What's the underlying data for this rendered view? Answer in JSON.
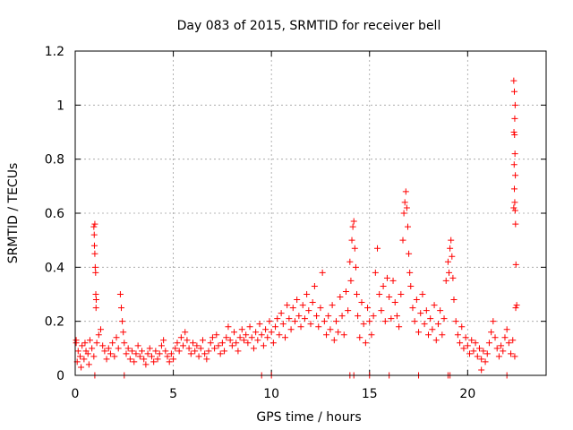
{
  "chart_data": {
    "type": "scatter",
    "title": "Day 083 of 2015, SRMTID for receiver bell",
    "xlabel": "GPS time / hours",
    "ylabel": "SRMTID / TECUs",
    "xlim": [
      0,
      24
    ],
    "ylim": [
      0,
      1.2
    ],
    "x_ticks": [
      0,
      5,
      10,
      15,
      20
    ],
    "x_tick_labels": [
      "0",
      "5",
      "10",
      "15",
      "20"
    ],
    "y_ticks": [
      0,
      0.2,
      0.4,
      0.6,
      0.8,
      1.0,
      1.2
    ],
    "y_tick_labels": [
      "0",
      "0.2",
      "0.4",
      "0.6",
      "0.8",
      "1",
      "1.2"
    ],
    "grid": true,
    "marker": "+",
    "series": [
      {
        "name": "SRMTID",
        "color": "#ff0000",
        "points": [
          [
            0.05,
            0.12
          ],
          [
            0.15,
            0.09
          ],
          [
            0.25,
            0.07
          ],
          [
            0.35,
            0.11
          ],
          [
            0.45,
            0.06
          ],
          [
            0.55,
            0.09
          ],
          [
            0.65,
            0.08
          ],
          [
            0.75,
            0.13
          ],
          [
            0.85,
            0.1
          ],
          [
            0.95,
            0.07
          ],
          [
            0.05,
            0.13
          ],
          [
            0.1,
            0.05
          ],
          [
            0.3,
            0.03
          ],
          [
            0.5,
            0.12
          ],
          [
            0.7,
            0.04
          ],
          [
            0.95,
            0.55
          ],
          [
            0.97,
            0.52
          ],
          [
            1.0,
            0.45
          ],
          [
            1.02,
            0.4
          ],
          [
            1.04,
            0.38
          ],
          [
            1.05,
            0.3
          ],
          [
            1.07,
            0.28
          ],
          [
            1.0,
            0.56
          ],
          [
            0.98,
            0.48
          ],
          [
            1.06,
            0.25
          ],
          [
            1.1,
            0.12
          ],
          [
            1.2,
            0.15
          ],
          [
            1.3,
            0.17
          ],
          [
            1.4,
            0.11
          ],
          [
            1.5,
            0.09
          ],
          [
            1.6,
            0.06
          ],
          [
            1.7,
            0.1
          ],
          [
            1.8,
            0.08
          ],
          [
            1.9,
            0.12
          ],
          [
            2.0,
            0.07
          ],
          [
            2.1,
            0.14
          ],
          [
            2.2,
            0.1
          ],
          [
            2.3,
            0.3
          ],
          [
            2.35,
            0.25
          ],
          [
            2.4,
            0.2
          ],
          [
            2.45,
            0.16
          ],
          [
            2.5,
            0.12
          ],
          [
            2.6,
            0.08
          ],
          [
            2.7,
            0.1
          ],
          [
            2.8,
            0.06
          ],
          [
            2.9,
            0.09
          ],
          [
            3.0,
            0.05
          ],
          [
            3.1,
            0.08
          ],
          [
            3.2,
            0.11
          ],
          [
            3.3,
            0.07
          ],
          [
            3.4,
            0.09
          ],
          [
            3.5,
            0.06
          ],
          [
            3.6,
            0.04
          ],
          [
            3.7,
            0.08
          ],
          [
            3.8,
            0.1
          ],
          [
            3.9,
            0.07
          ],
          [
            4.0,
            0.05
          ],
          [
            4.1,
            0.09
          ],
          [
            4.2,
            0.06
          ],
          [
            4.3,
            0.08
          ],
          [
            4.4,
            0.11
          ],
          [
            4.5,
            0.13
          ],
          [
            4.6,
            0.09
          ],
          [
            4.7,
            0.07
          ],
          [
            4.8,
            0.05
          ],
          [
            4.9,
            0.08
          ],
          [
            5.0,
            0.06
          ],
          [
            5.1,
            0.1
          ],
          [
            5.2,
            0.12
          ],
          [
            5.3,
            0.09
          ],
          [
            5.4,
            0.14
          ],
          [
            5.5,
            0.11
          ],
          [
            5.6,
            0.16
          ],
          [
            5.7,
            0.13
          ],
          [
            5.8,
            0.1
          ],
          [
            5.9,
            0.08
          ],
          [
            6.0,
            0.12
          ],
          [
            6.1,
            0.09
          ],
          [
            6.2,
            0.11
          ],
          [
            6.3,
            0.07
          ],
          [
            6.4,
            0.1
          ],
          [
            6.5,
            0.13
          ],
          [
            6.6,
            0.08
          ],
          [
            6.7,
            0.06
          ],
          [
            6.8,
            0.09
          ],
          [
            6.9,
            0.12
          ],
          [
            7.0,
            0.14
          ],
          [
            7.1,
            0.1
          ],
          [
            7.2,
            0.15
          ],
          [
            7.3,
            0.11
          ],
          [
            7.4,
            0.08
          ],
          [
            7.5,
            0.12
          ],
          [
            7.6,
            0.09
          ],
          [
            7.7,
            0.14
          ],
          [
            7.8,
            0.18
          ],
          [
            7.9,
            0.13
          ],
          [
            8.0,
            0.11
          ],
          [
            8.1,
            0.16
          ],
          [
            8.2,
            0.12
          ],
          [
            8.3,
            0.09
          ],
          [
            8.4,
            0.14
          ],
          [
            8.5,
            0.17
          ],
          [
            8.6,
            0.13
          ],
          [
            8.7,
            0.15
          ],
          [
            8.8,
            0.12
          ],
          [
            8.9,
            0.18
          ],
          [
            9.0,
            0.14
          ],
          [
            9.1,
            0.1
          ],
          [
            9.2,
            0.16
          ],
          [
            9.3,
            0.13
          ],
          [
            9.4,
            0.19
          ],
          [
            9.5,
            0.15
          ],
          [
            9.6,
            0.11
          ],
          [
            9.7,
            0.17
          ],
          [
            9.8,
            0.14
          ],
          [
            9.9,
            0.2
          ],
          [
            10.0,
            0.16
          ],
          [
            10.1,
            0.12
          ],
          [
            10.2,
            0.18
          ],
          [
            10.3,
            0.21
          ],
          [
            10.4,
            0.15
          ],
          [
            10.5,
            0.23
          ],
          [
            10.6,
            0.19
          ],
          [
            10.7,
            0.14
          ],
          [
            10.8,
            0.26
          ],
          [
            10.9,
            0.21
          ],
          [
            11.0,
            0.17
          ],
          [
            11.1,
            0.25
          ],
          [
            11.2,
            0.2
          ],
          [
            11.3,
            0.28
          ],
          [
            11.4,
            0.22
          ],
          [
            11.5,
            0.18
          ],
          [
            11.6,
            0.26
          ],
          [
            11.7,
            0.21
          ],
          [
            11.8,
            0.3
          ],
          [
            11.9,
            0.24
          ],
          [
            12.0,
            0.19
          ],
          [
            12.1,
            0.27
          ],
          [
            12.2,
            0.33
          ],
          [
            12.3,
            0.22
          ],
          [
            12.4,
            0.18
          ],
          [
            12.5,
            0.25
          ],
          [
            12.6,
            0.38
          ],
          [
            12.7,
            0.2
          ],
          [
            12.8,
            0.15
          ],
          [
            12.9,
            0.22
          ],
          [
            13.0,
            0.17
          ],
          [
            13.1,
            0.26
          ],
          [
            13.2,
            0.13
          ],
          [
            13.3,
            0.2
          ],
          [
            13.4,
            0.16
          ],
          [
            13.5,
            0.29
          ],
          [
            13.6,
            0.22
          ],
          [
            13.7,
            0.15
          ],
          [
            13.8,
            0.31
          ],
          [
            13.9,
            0.24
          ],
          [
            14.0,
            0.42
          ],
          [
            14.05,
            0.35
          ],
          [
            14.1,
            0.5
          ],
          [
            14.15,
            0.55
          ],
          [
            14.2,
            0.57
          ],
          [
            14.25,
            0.47
          ],
          [
            14.3,
            0.4
          ],
          [
            14.35,
            0.3
          ],
          [
            14.4,
            0.22
          ],
          [
            14.5,
            0.14
          ],
          [
            14.6,
            0.27
          ],
          [
            14.7,
            0.19
          ],
          [
            14.8,
            0.12
          ],
          [
            14.9,
            0.25
          ],
          [
            15.0,
            0.2
          ],
          [
            15.1,
            0.15
          ],
          [
            15.2,
            0.22
          ],
          [
            15.3,
            0.38
          ],
          [
            15.4,
            0.47
          ],
          [
            15.5,
            0.3
          ],
          [
            15.6,
            0.24
          ],
          [
            15.7,
            0.33
          ],
          [
            15.8,
            0.2
          ],
          [
            15.9,
            0.36
          ],
          [
            16.0,
            0.29
          ],
          [
            16.1,
            0.21
          ],
          [
            16.2,
            0.35
          ],
          [
            16.3,
            0.27
          ],
          [
            16.4,
            0.22
          ],
          [
            16.5,
            0.18
          ],
          [
            16.6,
            0.3
          ],
          [
            16.7,
            0.5
          ],
          [
            16.75,
            0.6
          ],
          [
            16.8,
            0.64
          ],
          [
            16.85,
            0.68
          ],
          [
            16.9,
            0.62
          ],
          [
            16.95,
            0.55
          ],
          [
            17.0,
            0.45
          ],
          [
            17.05,
            0.38
          ],
          [
            17.1,
            0.33
          ],
          [
            17.2,
            0.25
          ],
          [
            17.3,
            0.2
          ],
          [
            17.4,
            0.28
          ],
          [
            17.5,
            0.16
          ],
          [
            17.6,
            0.23
          ],
          [
            17.7,
            0.3
          ],
          [
            17.8,
            0.19
          ],
          [
            17.9,
            0.24
          ],
          [
            18.0,
            0.15
          ],
          [
            18.1,
            0.21
          ],
          [
            18.2,
            0.17
          ],
          [
            18.3,
            0.26
          ],
          [
            18.4,
            0.13
          ],
          [
            18.5,
            0.19
          ],
          [
            18.6,
            0.24
          ],
          [
            18.7,
            0.15
          ],
          [
            18.8,
            0.21
          ],
          [
            18.9,
            0.35
          ],
          [
            19.0,
            0.42
          ],
          [
            19.05,
            0.38
          ],
          [
            19.1,
            0.47
          ],
          [
            19.15,
            0.5
          ],
          [
            19.2,
            0.44
          ],
          [
            19.25,
            0.36
          ],
          [
            19.3,
            0.28
          ],
          [
            19.4,
            0.2
          ],
          [
            19.5,
            0.15
          ],
          [
            19.6,
            0.12
          ],
          [
            19.7,
            0.18
          ],
          [
            19.8,
            0.1
          ],
          [
            19.9,
            0.14
          ],
          [
            20.0,
            0.11
          ],
          [
            20.1,
            0.08
          ],
          [
            20.2,
            0.13
          ],
          [
            20.3,
            0.09
          ],
          [
            20.4,
            0.12
          ],
          [
            20.5,
            0.07
          ],
          [
            20.6,
            0.1
          ],
          [
            20.7,
            0.06
          ],
          [
            20.8,
            0.09
          ],
          [
            20.9,
            0.05
          ],
          [
            21.0,
            0.08
          ],
          [
            21.1,
            0.12
          ],
          [
            21.2,
            0.16
          ],
          [
            21.3,
            0.2
          ],
          [
            21.4,
            0.14
          ],
          [
            21.5,
            0.1
          ],
          [
            21.6,
            0.07
          ],
          [
            21.7,
            0.11
          ],
          [
            21.8,
            0.09
          ],
          [
            21.9,
            0.14
          ],
          [
            22.0,
            0.17
          ],
          [
            22.1,
            0.12
          ],
          [
            22.2,
            0.08
          ],
          [
            22.3,
            0.13
          ],
          [
            22.4,
            0.07
          ],
          [
            22.45,
            0.25
          ],
          [
            22.5,
            0.26
          ],
          [
            22.35,
            1.09
          ],
          [
            22.38,
            1.05
          ],
          [
            22.42,
            1.0
          ],
          [
            22.4,
            0.95
          ],
          [
            22.36,
            0.9
          ],
          [
            22.39,
            0.89
          ],
          [
            22.41,
            0.82
          ],
          [
            22.37,
            0.78
          ],
          [
            22.43,
            0.74
          ],
          [
            22.38,
            0.69
          ],
          [
            22.4,
            0.64
          ],
          [
            22.35,
            0.62
          ],
          [
            22.42,
            0.61
          ],
          [
            22.44,
            0.56
          ],
          [
            22.46,
            0.41
          ],
          [
            20.7,
            0.02
          ],
          [
            1.0,
            0.0
          ],
          [
            2.5,
            0.0
          ],
          [
            9.5,
            0.0
          ],
          [
            10.0,
            0.0
          ],
          [
            14.0,
            0.0
          ],
          [
            14.2,
            0.0
          ],
          [
            15.0,
            0.0
          ],
          [
            16.0,
            0.0
          ],
          [
            17.5,
            0.0
          ],
          [
            19.0,
            0.0
          ],
          [
            19.1,
            0.0
          ],
          [
            22.0,
            0.0
          ]
        ]
      }
    ]
  }
}
